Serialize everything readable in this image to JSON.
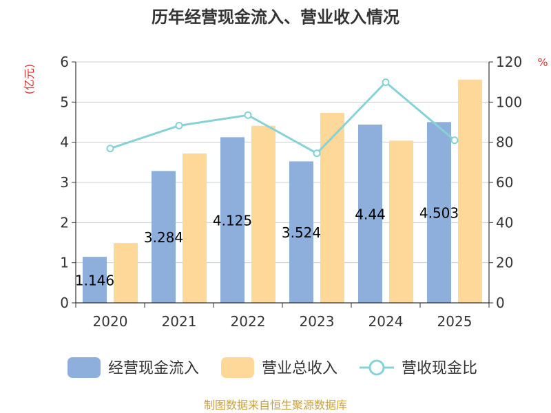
{
  "chart_data": {
    "type": "bar",
    "title": "历年经营现金流入、营业收入情况",
    "categories": [
      "2020",
      "2021",
      "2022",
      "2023",
      "2024",
      "2025"
    ],
    "y_left": {
      "unit": "(亿元)",
      "ticks": [
        "0",
        "1",
        "2",
        "3",
        "4",
        "5",
        "6"
      ],
      "min": 0,
      "max": 6
    },
    "y_right": {
      "unit": "%",
      "ticks": [
        "0",
        "20",
        "40",
        "60",
        "80",
        "100",
        "120"
      ],
      "min": 0,
      "max": 120
    },
    "series": [
      {
        "name": "经营现金流入",
        "type": "bar",
        "axis": "left",
        "color": "#8eaedb",
        "values": [
          1.146,
          3.284,
          4.125,
          3.524,
          4.44,
          4.503
        ],
        "labels": [
          "1.146",
          "3.284",
          "4.125",
          "3.524",
          "4.44",
          "4.503"
        ]
      },
      {
        "name": "营业总收入",
        "type": "bar",
        "axis": "left",
        "color": "#fdd898",
        "values": [
          1.49,
          3.72,
          4.41,
          4.73,
          4.04,
          5.56
        ]
      },
      {
        "name": "营收现金比",
        "type": "line",
        "axis": "right",
        "color": "#86d2d6",
        "values": [
          76.9,
          88.3,
          93.5,
          74.5,
          109.9,
          81.0
        ]
      }
    ],
    "grid": true,
    "legend": "bottom",
    "source": "制图数据来自恒生聚源数据库",
    "unit_color": "#e03030",
    "source_color": "#c8a040"
  }
}
